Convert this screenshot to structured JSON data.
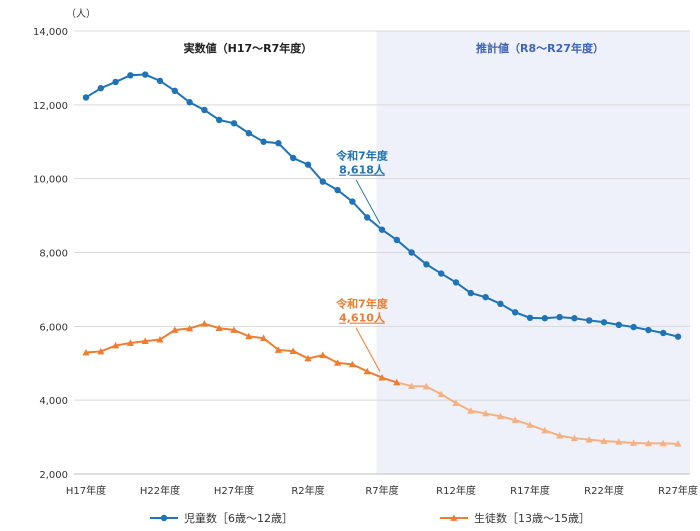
{
  "chart_data": {
    "type": "line",
    "unit_label": "（人）",
    "ylim": [
      2000,
      14000
    ],
    "y_ticks": [
      {
        "value": 2000,
        "label": "2,000"
      },
      {
        "value": 4000,
        "label": "4,000"
      },
      {
        "value": 6000,
        "label": "6,000"
      },
      {
        "value": 8000,
        "label": "8,000"
      },
      {
        "value": 10000,
        "label": "10,000"
      },
      {
        "value": 12000,
        "label": "12,000"
      },
      {
        "value": 14000,
        "label": "14,000"
      }
    ],
    "x_ticks": [
      {
        "index": 0,
        "label": "H17年度"
      },
      {
        "index": 5,
        "label": "H22年度"
      },
      {
        "index": 10,
        "label": "H27年度"
      },
      {
        "index": 15,
        "label": "R2年度"
      },
      {
        "index": 20,
        "label": "R7年度"
      },
      {
        "index": 25,
        "label": "R12年度"
      },
      {
        "index": 30,
        "label": "R17年度"
      },
      {
        "index": 35,
        "label": "R22年度"
      },
      {
        "index": 40,
        "label": "R27年度"
      }
    ],
    "regions": [
      {
        "label": "実数値（H17～R7年度）",
        "from": 0,
        "to": 20
      },
      {
        "label": "推計値（R8～R27年度）",
        "from": 21,
        "to": 40
      }
    ],
    "series": [
      {
        "name": "児童数［6歳～12歳］",
        "color": "#1f73b7",
        "light_color": "#1f73b7",
        "marker": "circle",
        "values": [
          12200,
          12450,
          12620,
          12800,
          12820,
          12650,
          12380,
          12070,
          11860,
          11590,
          11500,
          11230,
          11000,
          10960,
          10560,
          10380,
          9920,
          9690,
          9380,
          8950,
          8618,
          8340,
          8000,
          7680,
          7430,
          7190,
          6900,
          6790,
          6610,
          6380,
          6230,
          6220,
          6250,
          6220,
          6160,
          6110,
          6040,
          5980,
          5900,
          5820,
          5720
        ]
      },
      {
        "name": "生徒数［13歳～15歳］",
        "color": "#ed7d31",
        "light_color": "#f4b183",
        "marker": "triangle",
        "values": [
          5290,
          5320,
          5480,
          5550,
          5600,
          5640,
          5900,
          5940,
          6070,
          5950,
          5900,
          5730,
          5680,
          5360,
          5330,
          5130,
          5220,
          5010,
          4970,
          4780,
          4610,
          4480,
          4380,
          4370,
          4160,
          3920,
          3710,
          3640,
          3560,
          3460,
          3330,
          3180,
          3040,
          2970,
          2930,
          2890,
          2870,
          2840,
          2830,
          2830,
          2820
        ]
      }
    ],
    "annotations": [
      {
        "series": 0,
        "index": 20,
        "line1": "令和7年度",
        "line2": "8,618人"
      },
      {
        "series": 1,
        "index": 20,
        "line1": "令和7年度",
        "line2": "4,610人"
      }
    ],
    "grid": true,
    "legend_position": "bottom"
  }
}
